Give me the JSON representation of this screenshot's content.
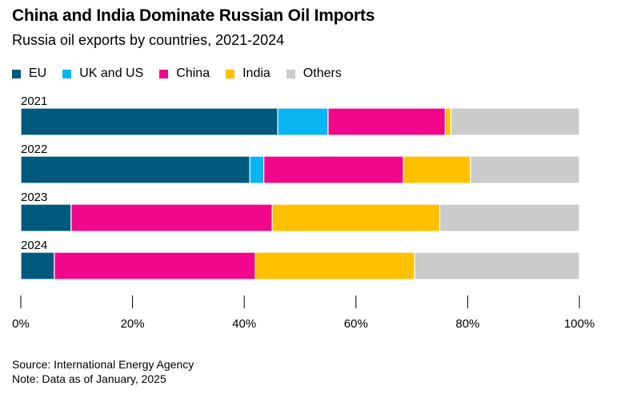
{
  "title": "China and India Dominate Russian Oil Imports",
  "subtitle": "Russia oil exports by countries, 2021-2024",
  "source": "Source: International Energy Agency",
  "note": "Note: Data as of January, 2025",
  "chart_data": {
    "type": "bar",
    "orientation": "horizontal",
    "stacked": true,
    "title": "China and India Dominate Russian Oil Imports",
    "subtitle": "Russia oil exports by countries, 2021-2024",
    "xlabel": "",
    "ylabel": "",
    "xlim": [
      0,
      100
    ],
    "x_ticks": [
      "0%",
      "20%",
      "40%",
      "60%",
      "80%",
      "100%"
    ],
    "grid": false,
    "legend_position": "top-left",
    "categories": [
      "2021",
      "2022",
      "2023",
      "2024"
    ],
    "series": [
      {
        "name": "EU",
        "color": "#005a7d",
        "values": [
          46,
          41,
          9,
          6
        ]
      },
      {
        "name": "UK and US",
        "color": "#08b4f2",
        "values": [
          9,
          2.5,
          0,
          0
        ]
      },
      {
        "name": "China",
        "color": "#f0078b",
        "values": [
          21,
          25,
          36,
          36
        ]
      },
      {
        "name": "India",
        "color": "#ffc000",
        "values": [
          1,
          12,
          30,
          28.5
        ]
      },
      {
        "name": "Others",
        "color": "#cbcbcb",
        "values": [
          23,
          19.5,
          25,
          29.5
        ]
      }
    ]
  }
}
